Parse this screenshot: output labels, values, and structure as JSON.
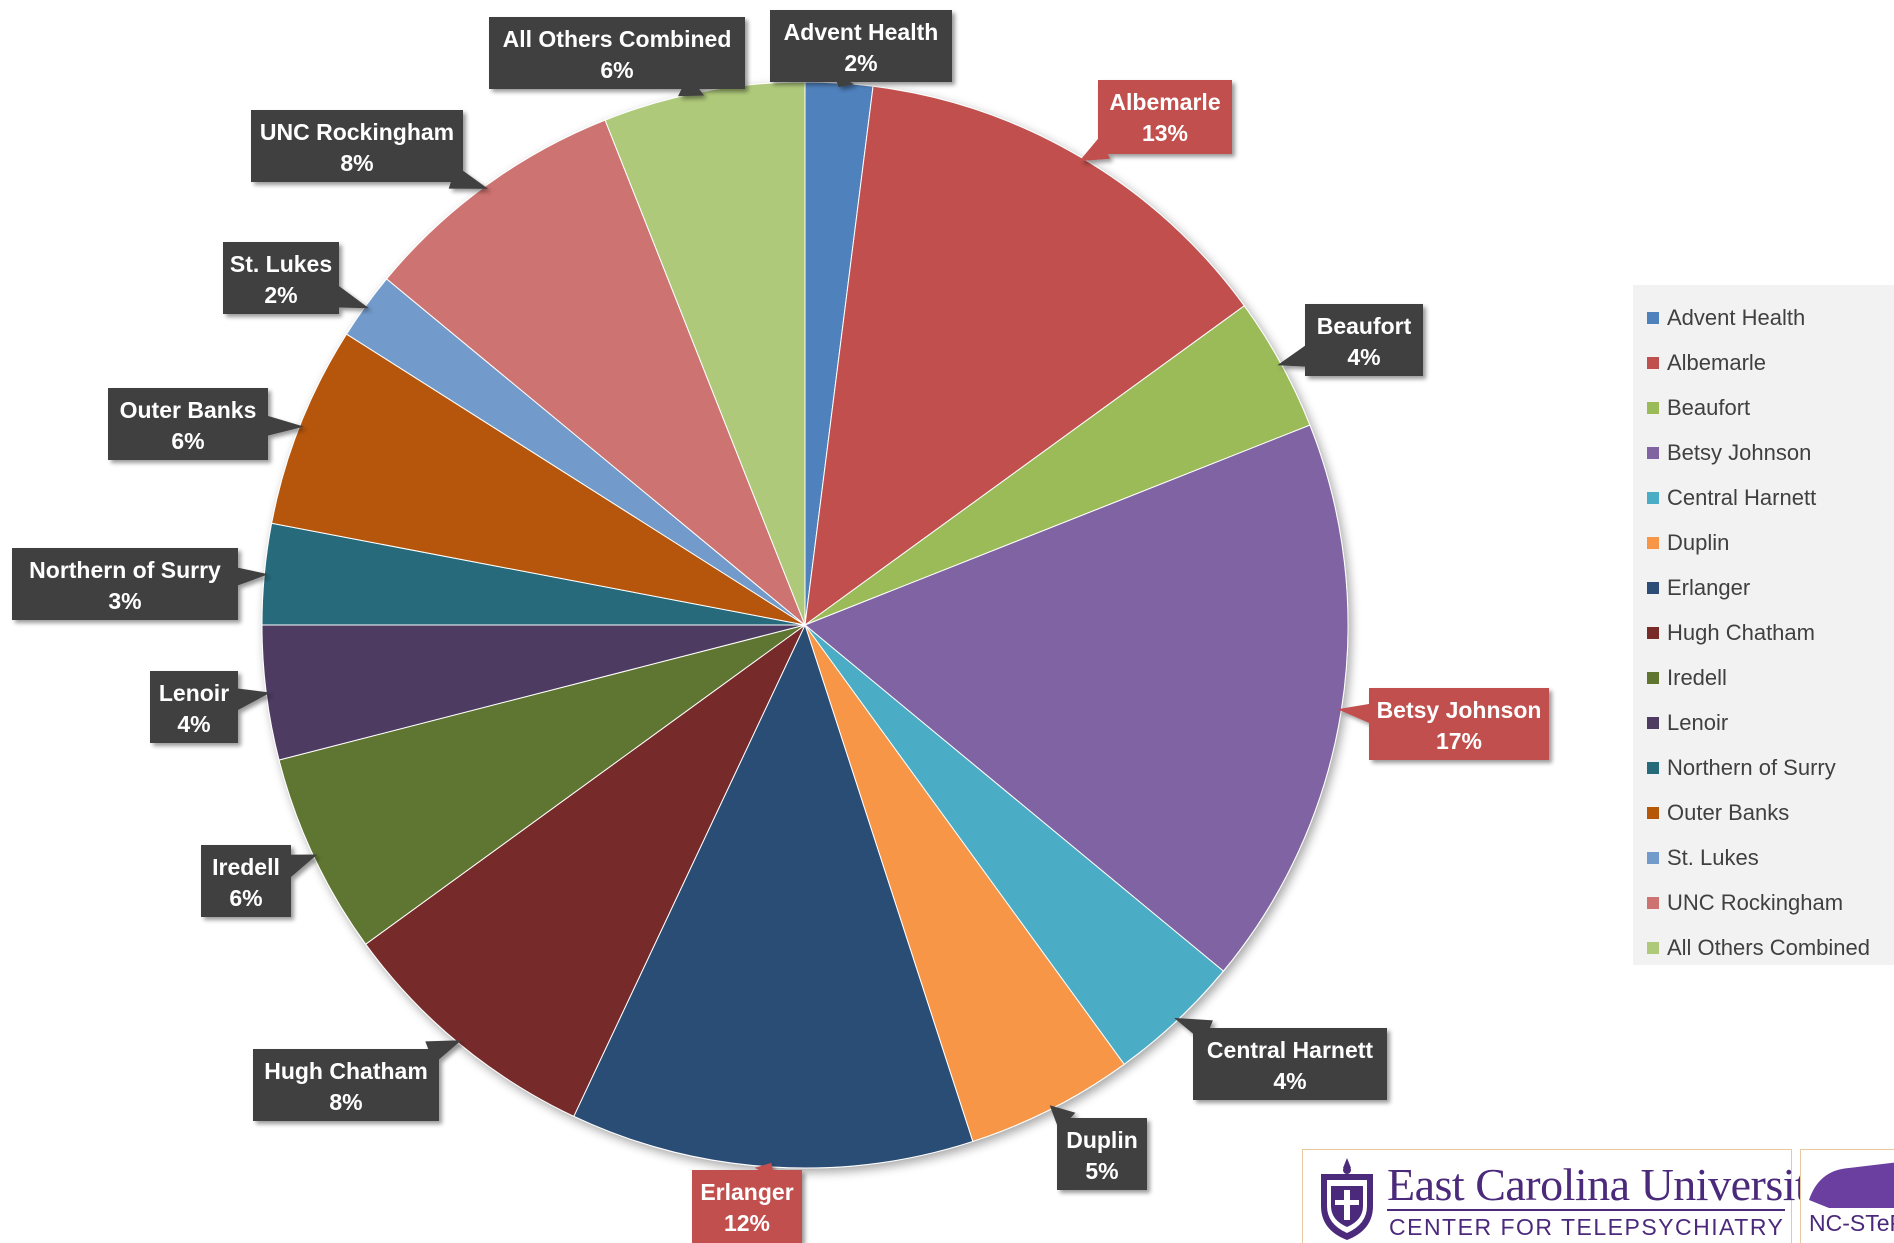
{
  "chart_data": {
    "type": "pie",
    "title": "",
    "legend": "right",
    "slices": [
      {
        "label": "Advent Health",
        "value": 2,
        "display": "2%",
        "color": "#4f81bd"
      },
      {
        "label": "Albemarle",
        "value": 13,
        "display": "13%",
        "color": "#c0504d"
      },
      {
        "label": "Beaufort",
        "value": 4,
        "display": "4%",
        "color": "#9bbb59"
      },
      {
        "label": "Betsy Johnson",
        "value": 17,
        "display": "17%",
        "color": "#8064a2"
      },
      {
        "label": "Central Harnett",
        "value": 4,
        "display": "4%",
        "color": "#4bacc6"
      },
      {
        "label": "Duplin",
        "value": 5,
        "display": "5%",
        "color": "#f79646"
      },
      {
        "label": "Erlanger",
        "value": 12,
        "display": "12%",
        "color": "#2c4d75"
      },
      {
        "label": "Hugh Chatham",
        "value": 8,
        "display": "8%",
        "color": "#772c2a"
      },
      {
        "label": "Iredell",
        "value": 6,
        "display": "6%",
        "color": "#5f7530"
      },
      {
        "label": "Lenoir",
        "value": 4,
        "display": "4%",
        "color": "#4d3b62"
      },
      {
        "label": "Northern of Surry",
        "value": 3,
        "display": "3%",
        "color": "#276a7c"
      },
      {
        "label": "Outer Banks",
        "value": 6,
        "display": "6%",
        "color": "#b65708"
      },
      {
        "label": "St. Lukes",
        "value": 2,
        "display": "2%",
        "color": "#729aca"
      },
      {
        "label": "UNC Rockingham",
        "value": 8,
        "display": "8%",
        "color": "#cd7371"
      },
      {
        "label": "All Others Combined",
        "value": 6,
        "display": "6%",
        "color": "#afc97a"
      }
    ],
    "highlighted_labels": [
      "Albemarle",
      "Betsy Johnson",
      "Erlanger"
    ],
    "label_colors": {
      "default": "#404040",
      "highlight": "#c0504d"
    }
  },
  "logo": {
    "title": "East Carolina University.",
    "subtitle": "CENTER FOR TELEPSYCHIATRY",
    "partial_text": "NC-STeP",
    "color": "#4b2a7b"
  }
}
